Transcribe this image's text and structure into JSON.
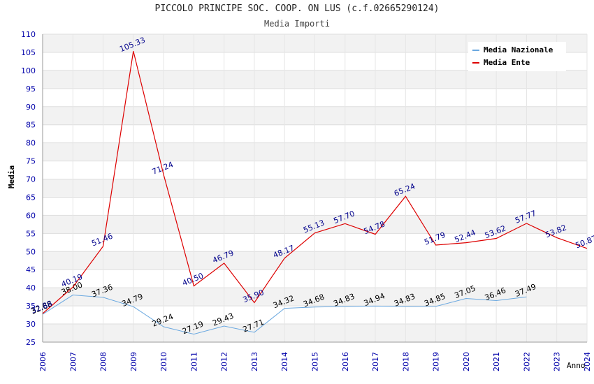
{
  "chart_data": {
    "type": "line",
    "title": "PICCOLO PRINCIPE SOC. COOP. ON LUS (c.f.02665290124)",
    "subtitle": "Media Importi",
    "xlabel": "Anno",
    "ylabel": "Media",
    "ylim": [
      25,
      110
    ],
    "yticks": [
      "25",
      "30",
      "35",
      "40",
      "45",
      "50",
      "55",
      "60",
      "65",
      "70",
      "75",
      "80",
      "85",
      "90",
      "95",
      "100",
      "105",
      "110"
    ],
    "categories": [
      "2006",
      "2007",
      "2008",
      "2009",
      "2010",
      "2011",
      "2012",
      "2013",
      "2014",
      "2015",
      "2016",
      "2017",
      "2018",
      "2019",
      "2020",
      "2021",
      "2022",
      "2023",
      "2024"
    ],
    "grid": true,
    "legend_position": "top-right",
    "series": [
      {
        "name": "Media Nazionale",
        "color": "#6aa8e0",
        "label_color": "#000000",
        "values": [
          32.68,
          38.0,
          37.36,
          34.79,
          29.24,
          27.19,
          29.43,
          27.71,
          34.32,
          34.68,
          34.83,
          34.94,
          34.83,
          34.85,
          37.05,
          36.46,
          37.49,
          null,
          null
        ],
        "labels": [
          "32.68",
          "38.00",
          "37.36",
          "34.79",
          "29.24",
          "27.19",
          "29.43",
          "27.71",
          "34.32",
          "34.68",
          "34.83",
          "34.94",
          "34.83",
          "34.85",
          "37.05",
          "36.46",
          "37.49",
          null,
          null
        ]
      },
      {
        "name": "Media Ente",
        "color": "#dd0000",
        "label_color": "#00008b",
        "values": [
          32.88,
          40.19,
          51.46,
          105.33,
          71.24,
          40.5,
          46.79,
          35.9,
          48.17,
          55.13,
          57.7,
          54.78,
          65.24,
          51.79,
          52.44,
          53.62,
          57.77,
          53.82,
          50.87
        ],
        "labels": [
          "32.88",
          "40.19",
          "51.46",
          "105.33",
          "71.24",
          "40.50",
          "46.79",
          "35.90",
          "48.17",
          "55.13",
          "57.70",
          "54.78",
          "65.24",
          "51.79",
          "52.44",
          "53.62",
          "57.77",
          "53.82",
          "50.87"
        ]
      }
    ]
  }
}
